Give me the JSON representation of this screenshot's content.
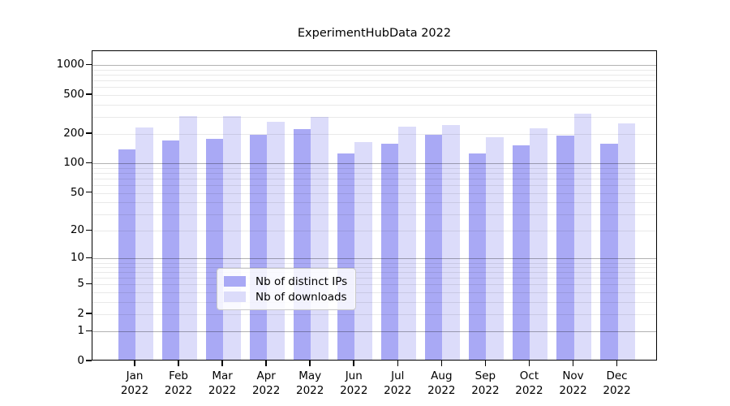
{
  "chart_data": {
    "type": "bar",
    "title": "ExperimentHubData 2022",
    "categories": [
      "Jan 2022",
      "Feb 2022",
      "Mar 2022",
      "Apr 2022",
      "May 2022",
      "Jun 2022",
      "Jul 2022",
      "Aug 2022",
      "Sep 2022",
      "Oct 2022",
      "Nov 2022",
      "Dec 2022"
    ],
    "series": [
      {
        "name": "Nb of distinct IPs",
        "color": "#a9a9f5",
        "values": [
          134,
          167,
          171,
          190,
          216,
          122,
          154,
          190,
          122,
          148,
          187,
          154
        ]
      },
      {
        "name": "Nb of downloads",
        "color": "#dcdcfa",
        "values": [
          225,
          294,
          295,
          258,
          290,
          160,
          228,
          238,
          178,
          219,
          311,
          249
        ]
      }
    ],
    "yscale": "log10(1+y)",
    "ylim": [
      0,
      1400
    ],
    "ytick_labels": [
      "1000",
      "500",
      "200",
      "100",
      "50",
      "20",
      "10",
      "5",
      "2",
      "1",
      "0"
    ],
    "ytick_values": [
      1000,
      500,
      200,
      100,
      50,
      20,
      10,
      5,
      2,
      1,
      0
    ],
    "grid_major_values": [
      1,
      10,
      100,
      1000
    ],
    "grid_minor_values": [
      2,
      3,
      4,
      5,
      6,
      7,
      8,
      9,
      20,
      30,
      40,
      50,
      60,
      70,
      80,
      90,
      200,
      300,
      400,
      500,
      600,
      700,
      800,
      900
    ],
    "grid": "on",
    "legend_position": "lower center inside plot",
    "colors": {
      "distinct_ips_bar": "#a9a9f5",
      "downloads_bar": "#dcdcfa",
      "major_gridline": "#b0b0b0",
      "minor_gridline": "#e8e8e8",
      "axis_text": "#000000"
    }
  }
}
